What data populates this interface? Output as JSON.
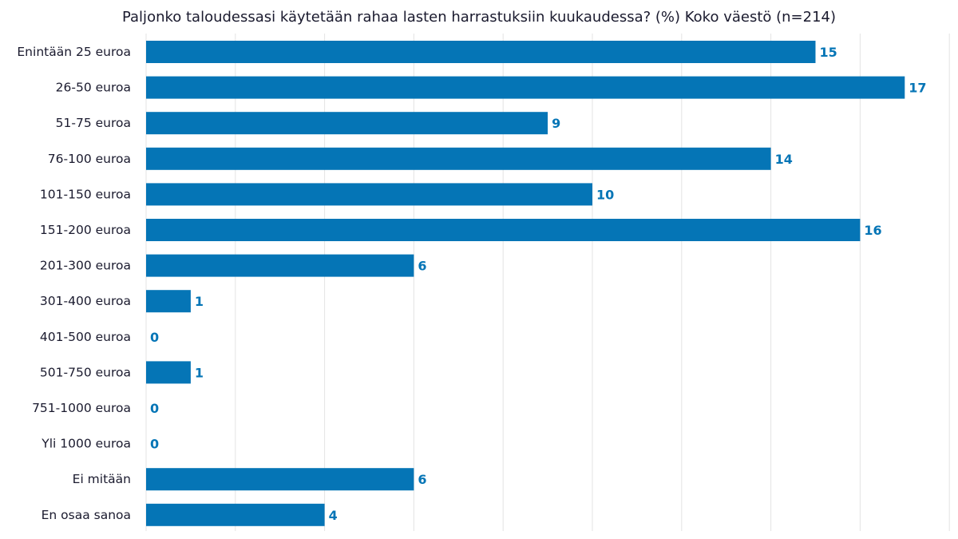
{
  "chart_data": {
    "type": "bar",
    "orientation": "horizontal",
    "title": "Paljonko taloudessasi käytetään rahaa lasten harrastuksiin kuukaudessa? (%) Koko väestö (n=214)",
    "categories": [
      "Enintään 25 euroa",
      "26-50 euroa",
      "51-75 euroa",
      "76-100 euroa",
      "101-150 euroa",
      "151-200 euroa",
      "201-300 euroa",
      "301-400 euroa",
      "401-500 euroa",
      "501-750 euroa",
      "751-1000 euroa",
      "Yli 1000 euroa",
      "Ei mitään",
      "En osaa sanoa"
    ],
    "values": [
      15,
      17,
      9,
      14,
      10,
      16,
      6,
      1,
      0,
      1,
      0,
      0,
      6,
      4
    ],
    "xlim": [
      0,
      18
    ],
    "grid": true,
    "legend": "none",
    "bar_color": "#0575b6",
    "label_color": "#0575b6"
  }
}
